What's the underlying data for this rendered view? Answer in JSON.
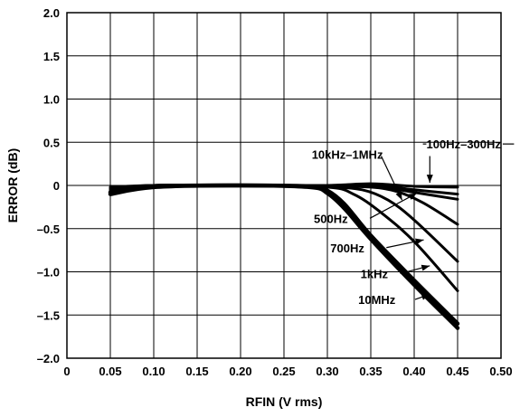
{
  "chart_data": {
    "type": "line",
    "xlabel": "RFIN (V rms)",
    "ylabel": "ERROR (dB)",
    "xlim": [
      0,
      0.5
    ],
    "ylim": [
      -2.0,
      2.0
    ],
    "x_ticks": [
      "0",
      "0.05",
      "0.10",
      "0.15",
      "0.20",
      "0.25",
      "0.30",
      "0.35",
      "0.40",
      "0.45",
      "0.50"
    ],
    "y_ticks": [
      "2.0",
      "1.5",
      "1.0",
      "0.5",
      "0",
      "–0.5",
      "–1.0",
      "–1.5",
      "–2.0"
    ],
    "grid": true,
    "series": [
      {
        "name": "100Hz–300Hz",
        "x": [
          0.05,
          0.1,
          0.2,
          0.3,
          0.35,
          0.4,
          0.45
        ],
        "y": [
          -0.02,
          0.0,
          0.0,
          0.0,
          0.02,
          -0.01,
          -0.02
        ]
      },
      {
        "name": "",
        "x": [
          0.05,
          0.1,
          0.2,
          0.3,
          0.35,
          0.4,
          0.45
        ],
        "y": [
          -0.03,
          0.0,
          0.0,
          0.0,
          0.01,
          -0.05,
          -0.1
        ]
      },
      {
        "name": "",
        "x": [
          0.05,
          0.1,
          0.2,
          0.3,
          0.35,
          0.4,
          0.45
        ],
        "y": [
          -0.04,
          0.0,
          0.0,
          0.0,
          0.0,
          -0.08,
          -0.16
        ]
      },
      {
        "name": "500Hz",
        "x": [
          0.05,
          0.1,
          0.2,
          0.3,
          0.35,
          0.38,
          0.41,
          0.45
        ],
        "y": [
          -0.05,
          0.0,
          0.0,
          -0.01,
          -0.02,
          -0.07,
          -0.2,
          -0.45
        ]
      },
      {
        "name": "700Hz",
        "x": [
          0.05,
          0.1,
          0.2,
          0.3,
          0.34,
          0.37,
          0.4,
          0.45
        ],
        "y": [
          -0.06,
          0.0,
          0.0,
          -0.02,
          -0.05,
          -0.17,
          -0.4,
          -0.88
        ]
      },
      {
        "name": "1kHz",
        "x": [
          0.05,
          0.1,
          0.2,
          0.3,
          0.33,
          0.36,
          0.4,
          0.45
        ],
        "y": [
          -0.07,
          0.0,
          0.0,
          -0.02,
          -0.1,
          -0.3,
          -0.65,
          -1.22
        ]
      },
      {
        "name": "10kHz–1MHz",
        "x": [
          0.05,
          0.1,
          0.2,
          0.28,
          0.3,
          0.32,
          0.35,
          0.4,
          0.45
        ],
        "y": [
          -0.08,
          -0.01,
          0.0,
          -0.01,
          -0.06,
          -0.22,
          -0.58,
          -1.1,
          -1.6
        ]
      },
      {
        "name": "10MHz",
        "x": [
          0.05,
          0.1,
          0.2,
          0.28,
          0.3,
          0.32,
          0.35,
          0.4,
          0.45
        ],
        "y": [
          -0.1,
          -0.02,
          0.0,
          -0.02,
          -0.09,
          -0.27,
          -0.62,
          -1.15,
          -1.65
        ]
      }
    ],
    "annotations": [
      {
        "text": "100Hz–300Hz",
        "x": 0.457,
        "y": 0.48
      },
      {
        "text": "10kHz–1MHz",
        "x": 0.323,
        "y": 0.36
      },
      {
        "text": "500Hz",
        "x": 0.304,
        "y": -0.38
      },
      {
        "text": "700Hz",
        "x": 0.323,
        "y": -0.72
      },
      {
        "text": "1kHz",
        "x": 0.354,
        "y": -1.02
      },
      {
        "text": "10MHz",
        "x": 0.357,
        "y": -1.32
      }
    ]
  }
}
